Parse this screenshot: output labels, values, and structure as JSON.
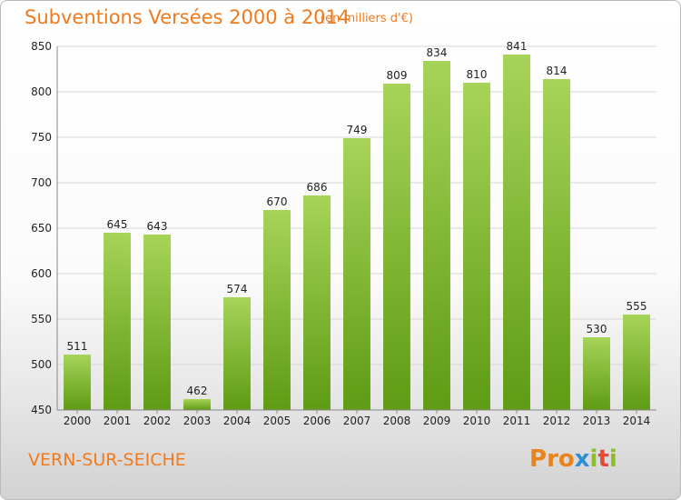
{
  "header": {
    "title": "Subventions Versées 2000 à 2014",
    "subtitle": "(en milliers d'€)"
  },
  "footer": {
    "place": "VERN-SUR-SEICHE",
    "logo_text": "Proxiti",
    "logo_letters": [
      "P",
      "r",
      "o",
      "x",
      "i",
      "t",
      "i"
    ],
    "logo_colors": [
      "#e9841d",
      "#e9841d",
      "#e9841d",
      "#2f8fd6",
      "#8bbf2a",
      "#e44a36",
      "#8bbf2a"
    ]
  },
  "colors": {
    "title": "#f07a1e",
    "bar_top": "#a6d458",
    "bar_bottom": "#5f9b14",
    "grid": "#d6d6d6"
  },
  "chart_data": {
    "type": "bar",
    "title": "Subventions Versées 2000 à 2014",
    "subtitle": "(en milliers d'€)",
    "xlabel": "",
    "ylabel": "",
    "categories": [
      "2000",
      "2001",
      "2002",
      "2003",
      "2004",
      "2005",
      "2006",
      "2007",
      "2008",
      "2009",
      "2010",
      "2011",
      "2012",
      "2013",
      "2014"
    ],
    "values": [
      511,
      645,
      643,
      462,
      574,
      670,
      686,
      749,
      809,
      834,
      810,
      841,
      814,
      530,
      555
    ],
    "ylim": [
      450,
      850
    ],
    "yticks": [
      450,
      500,
      550,
      600,
      650,
      700,
      750,
      800,
      850
    ],
    "grid": true
  }
}
